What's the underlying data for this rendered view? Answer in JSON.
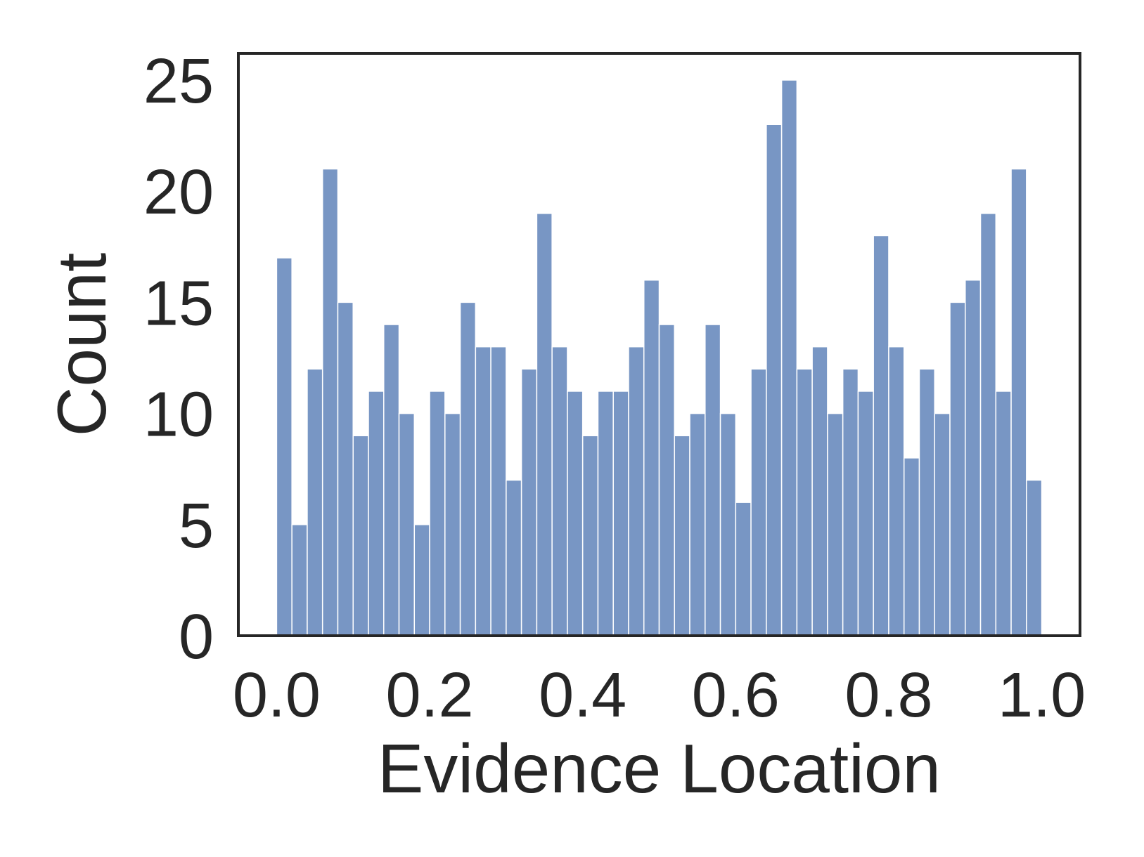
{
  "chart_data": {
    "type": "bar",
    "title": "",
    "xlabel": "Evidence Location",
    "ylabel": "Count",
    "xlim": [
      -0.05,
      1.05
    ],
    "ylim": [
      0,
      26.2
    ],
    "bin_start": 0.0,
    "bin_width": 0.02,
    "x_ticks": [
      {
        "value": 0.0,
        "label": "0.0"
      },
      {
        "value": 0.2,
        "label": "0.2"
      },
      {
        "value": 0.4,
        "label": "0.4"
      },
      {
        "value": 0.6,
        "label": "0.6"
      },
      {
        "value": 0.8,
        "label": "0.8"
      },
      {
        "value": 1.0,
        "label": "1.0"
      }
    ],
    "y_ticks": [
      {
        "value": 0,
        "label": "0"
      },
      {
        "value": 5,
        "label": "5"
      },
      {
        "value": 10,
        "label": "10"
      },
      {
        "value": 15,
        "label": "15"
      },
      {
        "value": 20,
        "label": "20"
      },
      {
        "value": 25,
        "label": "25"
      }
    ],
    "values": [
      17,
      5,
      12,
      21,
      15,
      9,
      11,
      14,
      10,
      5,
      11,
      10,
      15,
      13,
      13,
      7,
      12,
      19,
      13,
      11,
      9,
      11,
      11,
      13,
      16,
      14,
      9,
      10,
      14,
      10,
      6,
      12,
      23,
      25,
      12,
      13,
      10,
      12,
      11,
      18,
      13,
      8,
      12,
      10,
      15,
      16,
      19,
      11,
      21,
      7
    ],
    "grid": false,
    "legend": "none",
    "colors": {
      "bar": "#7896c4",
      "bar_edge": "#ffffff",
      "axes": "#262626",
      "text": "#262626"
    }
  }
}
